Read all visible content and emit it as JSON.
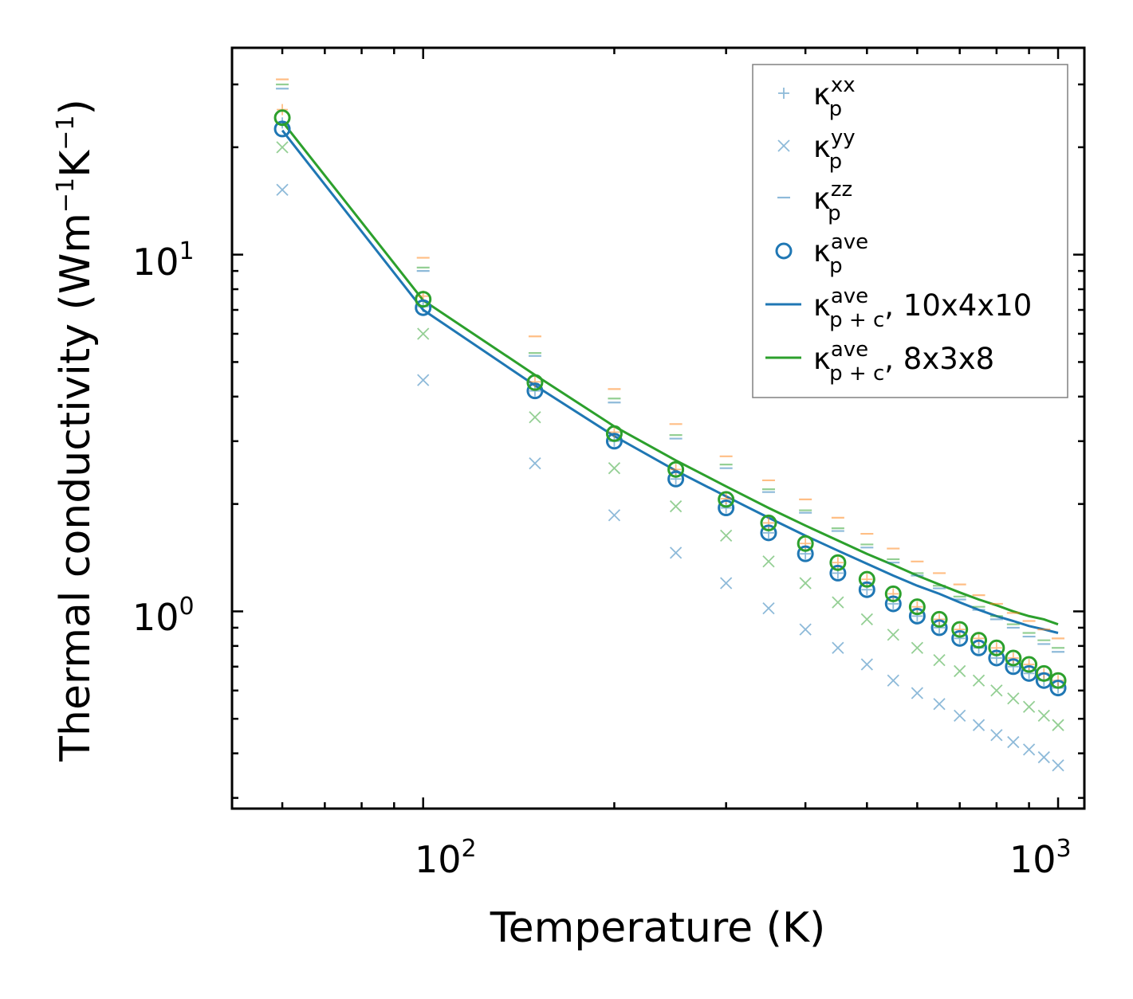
{
  "chart_data": {
    "type": "scatter",
    "xscale": "log",
    "yscale": "log",
    "xlim": [
      50,
      1100
    ],
    "ylim": [
      0.28,
      38
    ],
    "xlabel": "Temperature (K)",
    "ylabel": {
      "main": "Thermal conductivity (Wm",
      "exp1": "−1",
      "k": "K",
      "exp2": "−1",
      "close": ")"
    },
    "x_ticks": [
      {
        "base": "10",
        "exp": "2",
        "value": 100
      },
      {
        "base": "10",
        "exp": "3",
        "value": 1000
      }
    ],
    "y_ticks": [
      {
        "base": "10",
        "exp": "0",
        "value": 1
      },
      {
        "base": "10",
        "exp": "1",
        "value": 10
      }
    ],
    "colors": {
      "blue": "#1f77b4",
      "orange": "#ff7f0e",
      "green": "#2ca02c"
    },
    "x": [
      60,
      100,
      150,
      200,
      250,
      300,
      350,
      400,
      450,
      500,
      550,
      600,
      650,
      700,
      750,
      800,
      850,
      900,
      950,
      1000
    ],
    "series": [
      {
        "name": "kxx 10x4x10",
        "marker": "plus",
        "color": "blue",
        "values": [
          23.4,
          7.15,
          4.15,
          3.0,
          2.35,
          1.95,
          1.66,
          1.45,
          1.28,
          1.15,
          1.05,
          0.97,
          0.9,
          0.84,
          0.79,
          0.74,
          0.7,
          0.67,
          0.64,
          0.61
        ]
      },
      {
        "name": "kxx 8x3x8",
        "marker": "plus",
        "color": "orange",
        "values": [
          25.5,
          7.65,
          4.4,
          3.18,
          2.5,
          2.07,
          1.77,
          1.55,
          1.37,
          1.23,
          1.12,
          1.03,
          0.95,
          0.89,
          0.84,
          0.79,
          0.74,
          0.71,
          0.67,
          0.64
        ]
      },
      {
        "name": "kyy 10x4x10",
        "marker": "cross",
        "color": "blue",
        "values": [
          15.2,
          4.45,
          2.6,
          1.86,
          1.46,
          1.2,
          1.02,
          0.89,
          0.79,
          0.71,
          0.64,
          0.59,
          0.55,
          0.51,
          0.48,
          0.45,
          0.43,
          0.41,
          0.39,
          0.37
        ]
      },
      {
        "name": "kyy 8x3x8",
        "marker": "cross",
        "color": "green",
        "values": [
          20.0,
          6.0,
          3.5,
          2.52,
          1.97,
          1.63,
          1.38,
          1.2,
          1.06,
          0.95,
          0.86,
          0.79,
          0.73,
          0.68,
          0.64,
          0.6,
          0.57,
          0.54,
          0.51,
          0.48
        ]
      },
      {
        "name": "kzz 10x4x10",
        "marker": "dash",
        "color": "blue",
        "values": [
          29.2,
          9.0,
          5.2,
          3.85,
          3.05,
          2.52,
          2.16,
          1.89,
          1.68,
          1.51,
          1.37,
          1.26,
          1.16,
          1.08,
          1.01,
          0.95,
          0.9,
          0.85,
          0.81,
          0.77
        ]
      },
      {
        "name": "kzz 10x4x10 b",
        "marker": "dash",
        "color": "green",
        "values": [
          30.0,
          9.2,
          5.3,
          3.95,
          3.12,
          2.58,
          2.2,
          1.92,
          1.71,
          1.54,
          1.4,
          1.28,
          1.18,
          1.1,
          1.03,
          0.97,
          0.92,
          0.87,
          0.83,
          0.79
        ]
      },
      {
        "name": "kzz 8x3x8",
        "marker": "dash",
        "color": "orange",
        "values": [
          31.0,
          9.8,
          5.9,
          4.2,
          3.35,
          2.72,
          2.33,
          2.06,
          1.83,
          1.65,
          1.5,
          1.38,
          1.28,
          1.19,
          1.11,
          1.05,
          0.99,
          0.94,
          0.89,
          0.84
        ]
      },
      {
        "name": "kave 10x4x10",
        "marker": "circle",
        "color": "blue",
        "values": [
          22.5,
          7.1,
          4.15,
          3.0,
          2.35,
          1.95,
          1.66,
          1.45,
          1.28,
          1.15,
          1.05,
          0.97,
          0.9,
          0.84,
          0.79,
          0.74,
          0.7,
          0.67,
          0.64,
          0.61
        ]
      },
      {
        "name": "kave 8x3x8",
        "marker": "circle",
        "color": "green",
        "values": [
          24.2,
          7.5,
          4.38,
          3.15,
          2.5,
          2.06,
          1.77,
          1.55,
          1.37,
          1.23,
          1.12,
          1.03,
          0.95,
          0.89,
          0.83,
          0.79,
          0.74,
          0.71,
          0.67,
          0.64
        ]
      },
      {
        "name": "kave p+c 10x4x10",
        "marker": "line",
        "color": "blue",
        "values": [
          22.3,
          7.0,
          4.3,
          3.1,
          2.48,
          2.1,
          1.83,
          1.63,
          1.48,
          1.36,
          1.26,
          1.18,
          1.12,
          1.06,
          1.01,
          0.97,
          0.94,
          0.91,
          0.89,
          0.87
        ]
      },
      {
        "name": "kave p+c 8x3x8",
        "marker": "line",
        "color": "green",
        "values": [
          23.6,
          7.45,
          4.6,
          3.3,
          2.65,
          2.24,
          1.95,
          1.74,
          1.58,
          1.45,
          1.35,
          1.26,
          1.19,
          1.13,
          1.08,
          1.04,
          1.0,
          0.97,
          0.95,
          0.92
        ]
      }
    ],
    "legend": {
      "placement": "top-right",
      "entries": [
        {
          "marker": "plus",
          "color": "blue",
          "k": "κ",
          "sup": "xx",
          "sub": "p",
          "suffix": ""
        },
        {
          "marker": "cross",
          "color": "blue",
          "k": "κ",
          "sup": "yy",
          "sub": "p",
          "suffix": ""
        },
        {
          "marker": "dash",
          "color": "blue",
          "k": "κ",
          "sup": "zz",
          "sub": "p",
          "suffix": ""
        },
        {
          "marker": "circle",
          "color": "blue",
          "k": "κ",
          "sup": "ave",
          "sub": "p",
          "suffix": ""
        },
        {
          "marker": "line",
          "color": "blue",
          "k": "κ",
          "sup": "ave",
          "sub": "p + c",
          "suffix": ", 10x4x10"
        },
        {
          "marker": "line",
          "color": "green",
          "k": "κ",
          "sup": "ave",
          "sub": "p + c",
          "suffix": ", 8x3x8"
        }
      ]
    }
  }
}
